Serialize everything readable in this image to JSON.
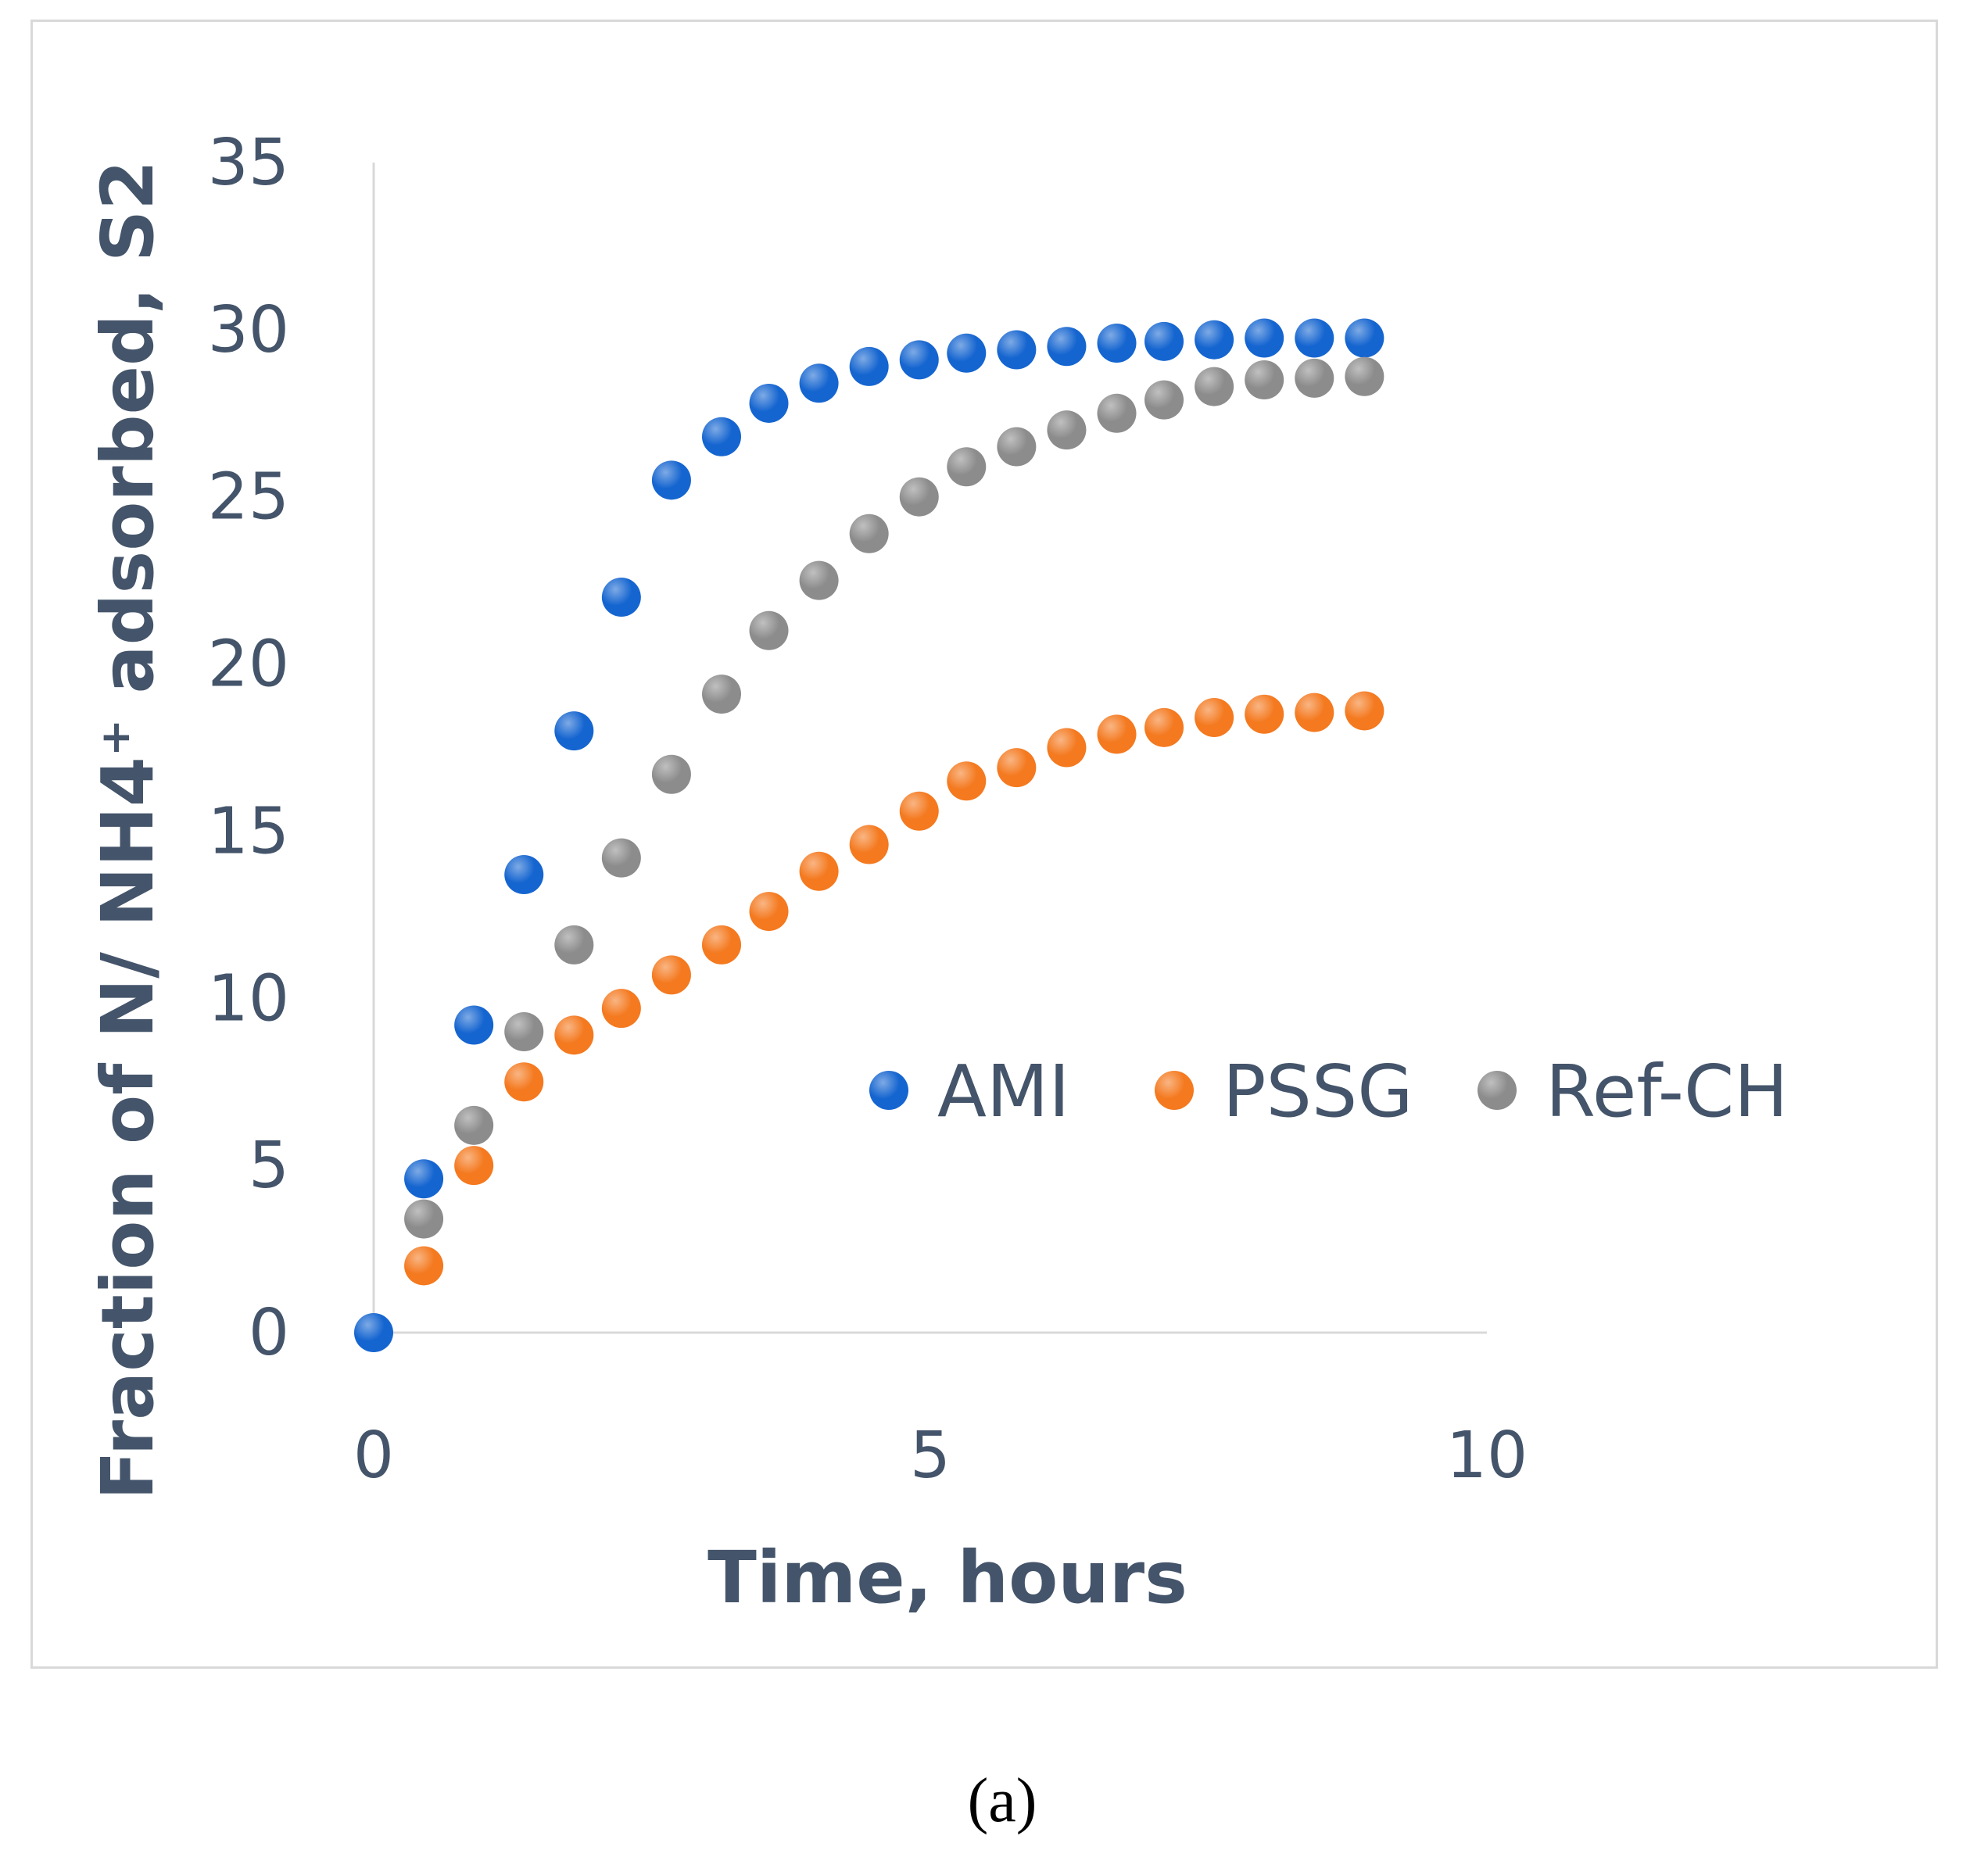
{
  "chart_data": {
    "type": "scatter",
    "title": "",
    "xlabel": "Time, hours",
    "ylabel": "Fraction of N/ NH4⁺ adsorbed, S2",
    "xlim": [
      0,
      10
    ],
    "ylim": [
      0,
      35
    ],
    "xticks": [
      "0",
      "5",
      "10"
    ],
    "yticks": [
      "0",
      "5",
      "10",
      "15",
      "20",
      "25",
      "30",
      "35"
    ],
    "grid": false,
    "legend_position": "center-right",
    "series": [
      {
        "name": "AMI",
        "color": "#1565d0",
        "x": [
          0,
          0.45,
          0.9,
          1.35,
          1.8,
          2.225,
          2.675,
          3.125,
          3.55,
          4.0,
          4.45,
          4.9,
          5.325,
          5.775,
          6.225,
          6.675,
          7.1,
          7.55,
          8.0,
          8.45,
          8.9
        ],
        "y": [
          0,
          4.6,
          9.2,
          13.7,
          18.0,
          22.0,
          25.5,
          26.8,
          27.8,
          28.4,
          28.9,
          29.1,
          29.3,
          29.4,
          29.5,
          29.6,
          29.65,
          29.7,
          29.75,
          29.75,
          29.75
        ]
      },
      {
        "name": "PSSG",
        "color": "#f4791f",
        "x": [
          0.45,
          0.9,
          1.35,
          1.8,
          2.225,
          2.675,
          3.125,
          3.55,
          4.0,
          4.45,
          4.9,
          5.325,
          5.775,
          6.225,
          6.675,
          7.1,
          7.55,
          8.0,
          8.45,
          8.9
        ],
        "y": [
          2.0,
          5.0,
          7.5,
          8.9,
          9.7,
          10.7,
          11.6,
          12.6,
          13.8,
          14.6,
          15.6,
          16.5,
          16.9,
          17.5,
          17.9,
          18.1,
          18.4,
          18.5,
          18.55,
          18.6
        ]
      },
      {
        "name": "Ref-CH",
        "color": "#8c8c8c",
        "x": [
          0.45,
          0.9,
          1.35,
          1.8,
          2.225,
          2.675,
          3.125,
          3.55,
          4.0,
          4.45,
          4.9,
          5.325,
          5.775,
          6.225,
          6.675,
          7.1,
          7.55,
          8.0,
          8.45,
          8.9
        ],
        "y": [
          3.4,
          6.2,
          9.0,
          11.6,
          14.2,
          16.7,
          19.1,
          21.0,
          22.5,
          23.9,
          25.0,
          25.9,
          26.5,
          27.0,
          27.5,
          27.9,
          28.3,
          28.5,
          28.55,
          28.6
        ]
      }
    ]
  },
  "caption": "(a)"
}
